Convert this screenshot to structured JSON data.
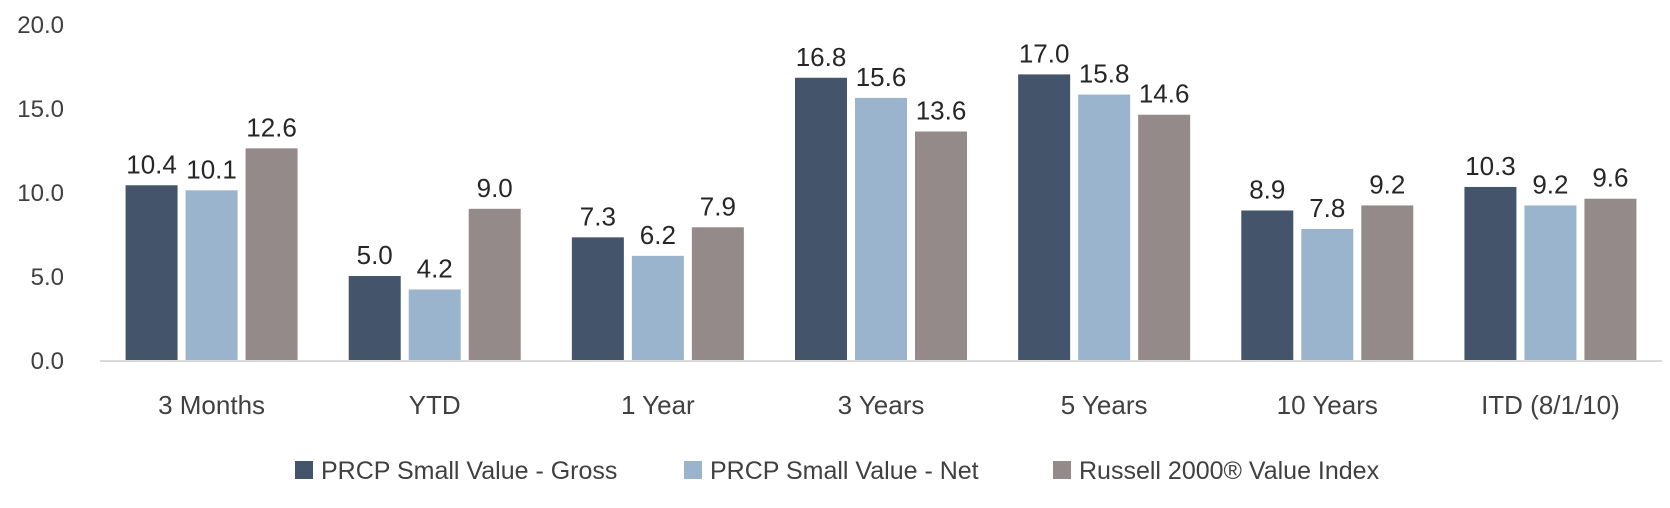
{
  "chart_data": {
    "type": "bar",
    "title": "",
    "xlabel": "",
    "ylabel": "",
    "ylim": [
      0,
      20
    ],
    "y_ticks": [
      "0.0",
      "5.0",
      "10.0",
      "15.0",
      "20.0"
    ],
    "grid": false,
    "legend_position": "bottom",
    "categories": [
      "3 Months",
      "YTD",
      "1 Year",
      "3 Years",
      "5 Years",
      "10 Years",
      "ITD (8/1/10)"
    ],
    "series": [
      {
        "name": "PRCP Small Value - Gross",
        "color": "#44546A",
        "values": [
          10.4,
          5.0,
          7.3,
          16.8,
          17.0,
          8.9,
          10.3
        ],
        "labels": [
          "10.4",
          "5.0",
          "7.3",
          "16.8",
          "17.0",
          "8.9",
          "10.3"
        ]
      },
      {
        "name": "PRCP Small Value - Net",
        "color": "#9BB4CE",
        "values": [
          10.1,
          4.2,
          6.2,
          15.6,
          15.8,
          7.8,
          9.2
        ],
        "labels": [
          "10.1",
          "4.2",
          "6.2",
          "15.6",
          "15.8",
          "7.8",
          "9.2"
        ]
      },
      {
        "name": "Russell 2000® Value Index",
        "color": "#948A89",
        "values": [
          12.6,
          9.0,
          7.9,
          13.6,
          14.6,
          9.2,
          9.6
        ],
        "labels": [
          "12.6",
          "9.0",
          "7.9",
          "13.6",
          "14.6",
          "9.2",
          "9.6"
        ]
      }
    ]
  }
}
